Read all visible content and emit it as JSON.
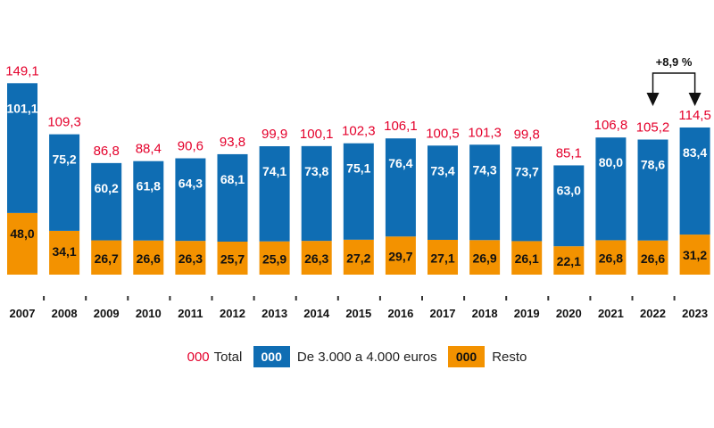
{
  "chart_data": {
    "type": "bar",
    "stacked": true,
    "title": "",
    "xlabel": "",
    "ylabel": "",
    "categories": [
      "2007",
      "2008",
      "2009",
      "2010",
      "2011",
      "2012",
      "2013",
      "2014",
      "2015",
      "2016",
      "2017",
      "2018",
      "2019",
      "2020",
      "2021",
      "2022",
      "2023"
    ],
    "series": [
      {
        "name": "De 3.000 a 4.000 euros",
        "color": "#0f6db3",
        "labels": [
          "101,1",
          "75,2",
          "60,2",
          "61,8",
          "64,3",
          "68,1",
          "74,1",
          "73,8",
          "75,1",
          "76,4",
          "73,4",
          "74,3",
          "73,7",
          "63,0",
          "80,0",
          "78,6",
          "83,4"
        ],
        "values": [
          101.1,
          75.2,
          60.2,
          61.8,
          64.3,
          68.1,
          74.1,
          73.8,
          75.1,
          76.4,
          73.4,
          74.3,
          73.7,
          63.0,
          80.0,
          78.6,
          83.4
        ]
      },
      {
        "name": "Resto",
        "color": "#f39200",
        "labels": [
          "48,0",
          "34,1",
          "26,7",
          "26,6",
          "26,3",
          "25,7",
          "25,9",
          "26,3",
          "27,2",
          "29,7",
          "27,1",
          "26,9",
          "26,1",
          "22,1",
          "26,8",
          "26,6",
          "31,2"
        ],
        "values": [
          48.0,
          34.1,
          26.7,
          26.6,
          26.3,
          25.7,
          25.9,
          26.3,
          27.2,
          29.7,
          27.1,
          26.9,
          26.1,
          22.1,
          26.8,
          26.6,
          31.2
        ]
      }
    ],
    "totals": {
      "name": "Total",
      "color": "#e4002b",
      "labels": [
        "149,1",
        "109,3",
        "86,8",
        "88,4",
        "90,6",
        "93,8",
        "99,9",
        "100,1",
        "102,3",
        "106,1",
        "100,5",
        "101,3",
        "99,8",
        "85,1",
        "106,8",
        "105,2",
        "114,5"
      ],
      "values": [
        149.1,
        109.3,
        86.8,
        88.4,
        90.6,
        93.8,
        99.9,
        100.1,
        102.3,
        106.1,
        100.5,
        101.3,
        99.8,
        85.1,
        106.8,
        105.2,
        114.5
      ]
    },
    "annotation": {
      "text": "+8,9 %",
      "from": "2022",
      "to": "2023"
    },
    "ylim": [
      0,
      155
    ],
    "grid": false,
    "legend_position": "bottom"
  },
  "legend": {
    "total_sample": "000",
    "total_label": "Total",
    "blue_sample": "000",
    "blue_label": "De 3.000 a 4.000 euros",
    "orange_sample": "000",
    "orange_label": "Resto"
  }
}
